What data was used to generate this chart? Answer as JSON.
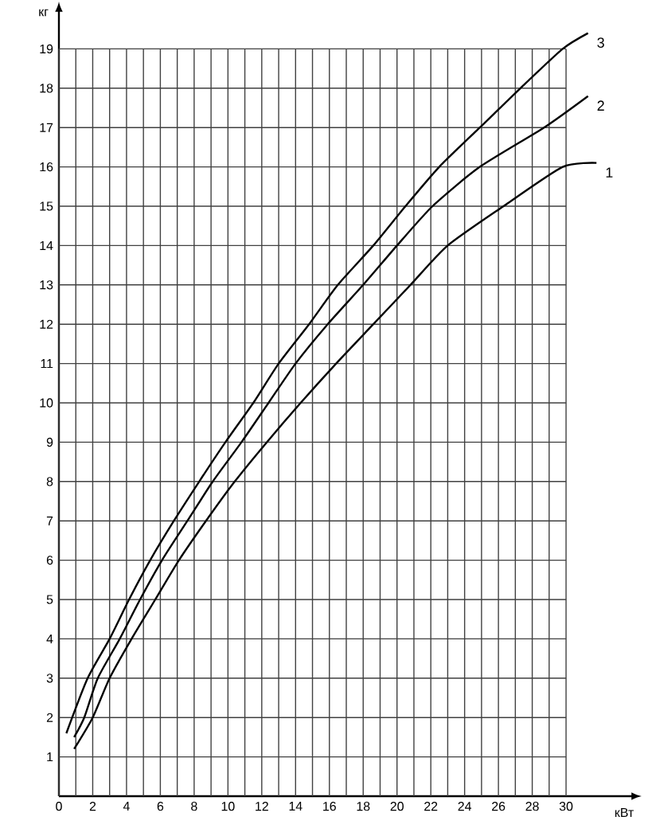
{
  "chart_data": {
    "type": "line",
    "xlabel": "кВт",
    "ylabel": "кг",
    "xlim": [
      0,
      34
    ],
    "ylim": [
      0,
      20
    ],
    "xticks": [
      0,
      2,
      4,
      6,
      8,
      10,
      12,
      14,
      16,
      18,
      20,
      22,
      24,
      26,
      28,
      30
    ],
    "yticks": [
      1,
      2,
      3,
      4,
      5,
      6,
      7,
      8,
      9,
      10,
      11,
      12,
      13,
      14,
      15,
      16,
      17,
      18,
      19
    ],
    "grid": true,
    "legend": false,
    "marker": "none",
    "line_style": "solid",
    "series": [
      {
        "name": "1",
        "color": "#000000",
        "x": [
          0.9,
          2.0,
          3.0,
          4.3,
          5.7,
          7.1,
          8.7,
          10.4,
          12.3,
          14.3,
          16.4,
          18.6,
          20.8,
          23.0,
          26.3,
          29.8,
          31.8
        ],
        "values": [
          1.2,
          2,
          3,
          4,
          5,
          6,
          7,
          8,
          9,
          10,
          11,
          12,
          13,
          14,
          15,
          16,
          16.1
        ]
      },
      {
        "name": "2",
        "color": "#000000",
        "x": [
          0.9,
          1.5,
          2.3,
          3.6,
          4.8,
          6.1,
          7.6,
          9.1,
          10.8,
          12.4,
          14.0,
          15.9,
          18.0,
          20.0,
          22.1,
          24.9,
          28.7,
          31.3
        ],
        "values": [
          1.5,
          2,
          3,
          4,
          5,
          6,
          7,
          8,
          9,
          10,
          11,
          12,
          13,
          14,
          15,
          16,
          17,
          17.8
        ]
      },
      {
        "name": "3",
        "color": "#000000",
        "x": [
          0.44,
          1.7,
          3.0,
          4.15,
          5.4,
          6.8,
          8.3,
          9.85,
          11.5,
          13.0,
          14.8,
          16.5,
          18.6,
          20.5,
          22.5,
          24.9,
          27.3,
          29.8,
          31.3
        ],
        "values": [
          1.6,
          3,
          4,
          5,
          6,
          7,
          8,
          9,
          10,
          11,
          12,
          13,
          14,
          15,
          16,
          17,
          18,
          19,
          19.4
        ]
      }
    ]
  }
}
